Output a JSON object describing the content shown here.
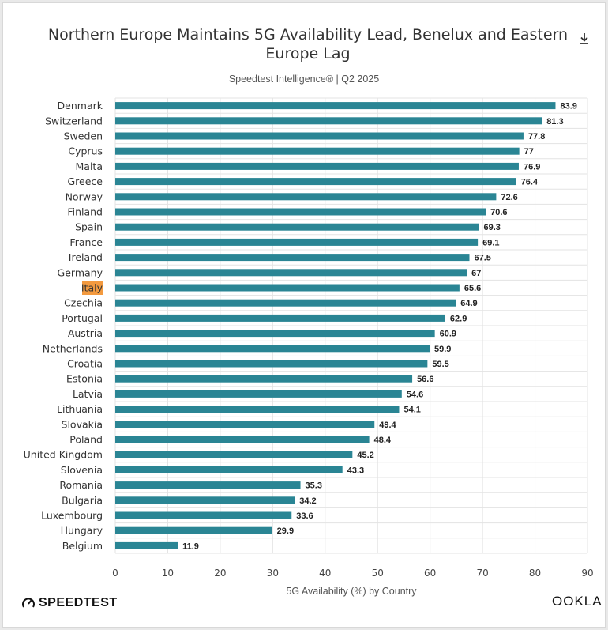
{
  "chart_data": {
    "type": "bar",
    "orientation": "horizontal",
    "title": "Northern Europe Maintains 5G Availability Lead, Benelux and Eastern Europe Lag",
    "subtitle": "Speedtest Intelligence® | Q2 2025",
    "xlabel": "5G Availability (%) by Country",
    "ylabel": "",
    "xlim": [
      0,
      90
    ],
    "xticks": [
      0,
      10,
      20,
      30,
      40,
      50,
      60,
      70,
      80,
      90
    ],
    "grid": true,
    "highlight": "Italy",
    "categories": [
      "Denmark",
      "Switzerland",
      "Sweden",
      "Cyprus",
      "Malta",
      "Greece",
      "Norway",
      "Finland",
      "Spain",
      "France",
      "Ireland",
      "Germany",
      "Italy",
      "Czechia",
      "Portugal",
      "Austria",
      "Netherlands",
      "Croatia",
      "Estonia",
      "Latvia",
      "Lithuania",
      "Slovakia",
      "Poland",
      "United Kingdom",
      "Slovenia",
      "Romania",
      "Bulgaria",
      "Luxembourg",
      "Hungary",
      "Belgium"
    ],
    "values": [
      83.9,
      81.3,
      77.8,
      77,
      76.9,
      76.4,
      72.6,
      70.6,
      69.3,
      69.1,
      67.5,
      67,
      65.6,
      64.9,
      62.9,
      60.9,
      59.9,
      59.5,
      56.6,
      54.6,
      54.1,
      49.4,
      48.4,
      45.2,
      43.3,
      35.3,
      34.2,
      33.6,
      29.9,
      11.9
    ],
    "value_labels": [
      "83.9",
      "81.3",
      "77.8",
      "77",
      "76.9",
      "76.4",
      "72.6",
      "70.6",
      "69.3",
      "69.1",
      "67.5",
      "67",
      "65.6",
      "64.9",
      "62.9",
      "60.9",
      "59.9",
      "59.5",
      "56.6",
      "54.6",
      "54.1",
      "49.4",
      "48.4",
      "45.2",
      "43.3",
      "35.3",
      "34.2",
      "33.6",
      "29.9",
      "11.9"
    ]
  },
  "colors": {
    "bar": "#2a8594",
    "highlight_bg": "#f39a3f",
    "grid": "#e3e3e3"
  },
  "branding": {
    "left_logo": "SPEEDTEST",
    "right_logo": "OOKLA"
  },
  "icons": {
    "download": "download-icon",
    "speedtest": "gauge-icon"
  }
}
